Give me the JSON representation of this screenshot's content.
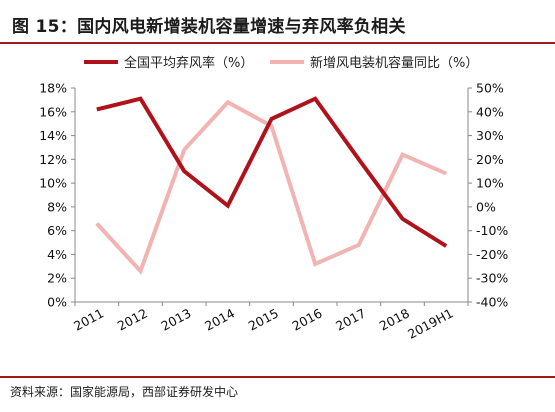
{
  "header": {
    "title": "图 15：国内风电新增装机容量增速与弃风率负相关"
  },
  "footer": {
    "source": "资料来源：国家能源局，西部证券研发中心"
  },
  "colors": {
    "accent": "#a11a1a",
    "series_primary": "#b0121b",
    "series_secondary": "#f2b3b3"
  },
  "chart_data": {
    "type": "line",
    "title": "",
    "categories": [
      "2011",
      "2012",
      "2013",
      "2014",
      "2015",
      "2016",
      "2017",
      "2018",
      "2019H1"
    ],
    "series": [
      {
        "name": "全国平均弃风率（%）",
        "axis": "left",
        "values": [
          16.2,
          17.1,
          11.0,
          8.1,
          15.4,
          17.1,
          12.0,
          7.0,
          4.7
        ]
      },
      {
        "name": "新增风电装机容量同比（%）",
        "axis": "right",
        "values": [
          -7,
          -27,
          24,
          44,
          34,
          -24,
          -16,
          22,
          14
        ]
      }
    ],
    "y_left": {
      "ylim": [
        0,
        18
      ],
      "ticks": [
        0,
        2,
        4,
        6,
        8,
        10,
        12,
        14,
        16,
        18
      ],
      "tick_labels": [
        "0%",
        "2%",
        "4%",
        "6%",
        "8%",
        "10%",
        "12%",
        "14%",
        "16%",
        "18%"
      ]
    },
    "y_right": {
      "ylim": [
        -40,
        50
      ],
      "ticks": [
        -40,
        -30,
        -20,
        -10,
        0,
        10,
        20,
        30,
        40,
        50
      ],
      "tick_labels": [
        "-40%",
        "-30%",
        "-20%",
        "-10%",
        "0%",
        "10%",
        "20%",
        "30%",
        "40%",
        "50%"
      ]
    },
    "grid": false,
    "legend": "top"
  }
}
